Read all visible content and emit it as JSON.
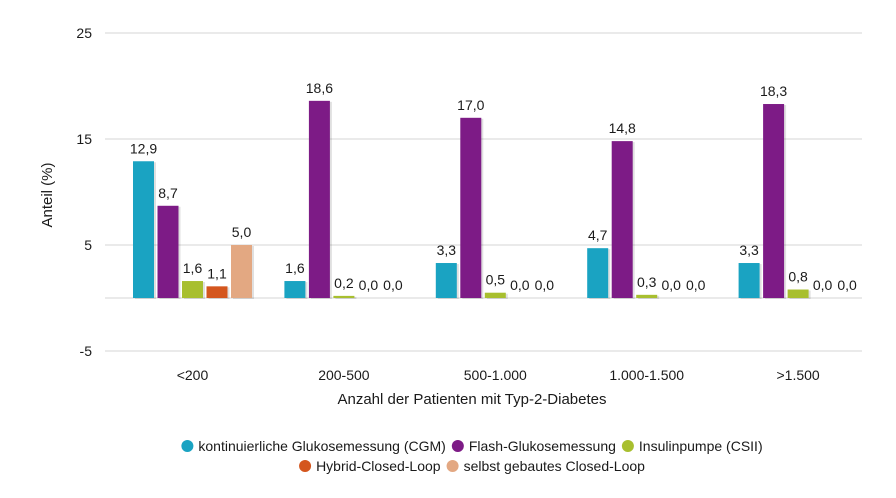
{
  "chart_data": {
    "type": "bar",
    "title": "",
    "xlabel": "Anzahl der Patienten mit Typ-2-Diabetes",
    "ylabel": "Anteil (%)",
    "ylim": [
      -5,
      25
    ],
    "yticks": [
      -5,
      5,
      15,
      25
    ],
    "grid": true,
    "legend_position": "bottom",
    "categories": [
      "<200",
      "200-500",
      "500-1.000",
      "1.000-1.500",
      ">1.500"
    ],
    "series": [
      {
        "name": "kontinuierliche Glukosemessung (CGM)",
        "color": "#1aa3c2",
        "values": [
          12.9,
          1.6,
          3.3,
          4.7,
          3.3
        ],
        "labels": [
          "12,9",
          "1,6",
          "3,3",
          "4,7",
          "3,3"
        ]
      },
      {
        "name": "Flash-Glukosemessung",
        "color": "#7d1b86",
        "values": [
          8.7,
          18.6,
          17.0,
          14.8,
          18.3
        ],
        "labels": [
          "8,7",
          "18,6",
          "17,0",
          "14,8",
          "18,3"
        ]
      },
      {
        "name": "Insulinpumpe (CSII)",
        "color": "#a8bf2f",
        "values": [
          1.6,
          0.2,
          0.5,
          0.3,
          0.8
        ],
        "labels": [
          "1,6",
          "0,2",
          "0,5",
          "0,3",
          "0,8"
        ]
      },
      {
        "name": "Hybrid-Closed-Loop",
        "color": "#d4561e",
        "values": [
          1.1,
          0.0,
          0.0,
          0.0,
          0.0
        ],
        "labels": [
          "1,1",
          "0,0",
          "0,0",
          "0,0",
          "0,0"
        ]
      },
      {
        "name": "selbst gebautes Closed-Loop",
        "color": "#e3a882",
        "values": [
          5.0,
          0.0,
          0.0,
          0.0,
          0.0
        ],
        "labels": [
          "5,0",
          "0,0",
          "0,0",
          "0,0",
          "0,0"
        ]
      }
    ]
  }
}
